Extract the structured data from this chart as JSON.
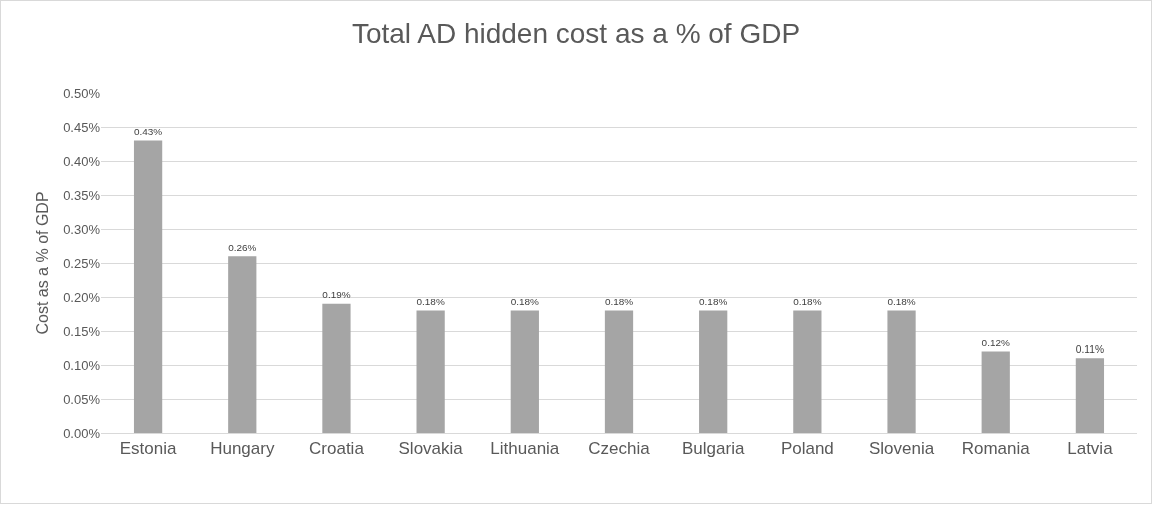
{
  "chart_data": {
    "type": "bar",
    "title": "Total AD hidden cost as a % of GDP",
    "ylabel": "Cost as a % of GDP",
    "categories": [
      "Estonia",
      "Hungary",
      "Croatia",
      "Slovakia",
      "Lithuania",
      "Czechia",
      "Bulgaria",
      "Poland",
      "Slovenia",
      "Romania",
      "Latvia"
    ],
    "values": [
      0.43,
      0.26,
      0.19,
      0.18,
      0.18,
      0.18,
      0.18,
      0.18,
      0.18,
      0.12,
      0.11
    ],
    "value_labels": [
      "0.43%",
      "0.26%",
      "0.19%",
      "0.18%",
      "0.18%",
      "0.18%",
      "0.18%",
      "0.18%",
      "0.18%",
      "0.12%",
      "0.11%"
    ],
    "color": "#a5a5a5",
    "ylim": [
      0,
      0.5
    ],
    "yticks": [
      {
        "value": 0,
        "label": "0.00%"
      },
      {
        "value": 0.05,
        "label": "0.05%"
      },
      {
        "value": 0.1,
        "label": "0.10%"
      },
      {
        "value": 0.15,
        "label": "0.15%"
      },
      {
        "value": 0.2,
        "label": "0.20%"
      },
      {
        "value": 0.25,
        "label": "0.25%"
      },
      {
        "value": 0.3,
        "label": "0.30%"
      },
      {
        "value": 0.35,
        "label": "0.35%"
      },
      {
        "value": 0.4,
        "label": "0.40%"
      },
      {
        "value": 0.45,
        "label": "0.45%"
      },
      {
        "value": 0.5,
        "label": "0.50%"
      }
    ],
    "grid": "y"
  }
}
